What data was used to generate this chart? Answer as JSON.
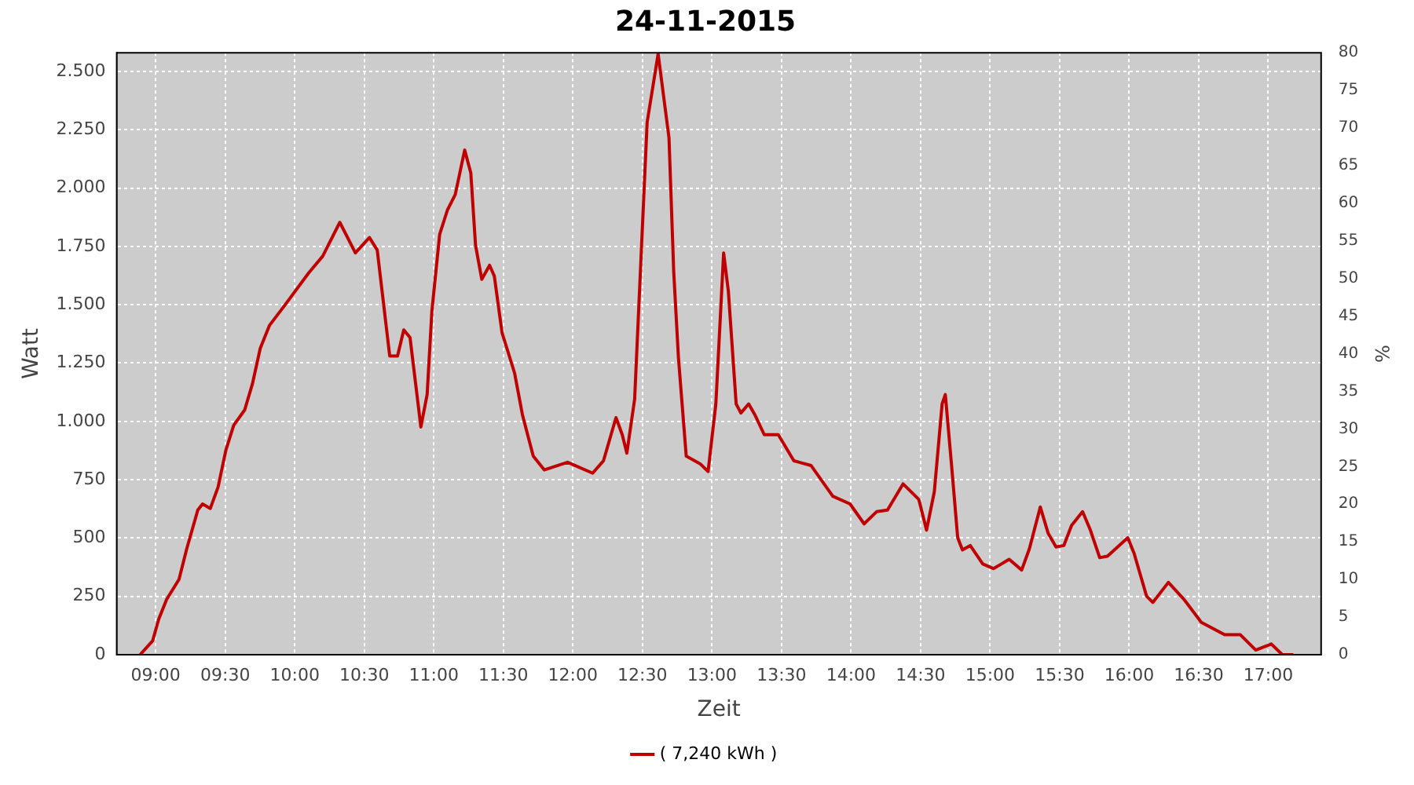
{
  "chart_data": {
    "type": "line",
    "title": "24-11-2015",
    "xlabel": "Zeit",
    "ylabel": "Watt",
    "y2label": "%",
    "xlim": [
      8.72,
      17.38
    ],
    "xticks": [
      {
        "value": 9,
        "label": "09:00"
      },
      {
        "value": 9.5,
        "label": "09:30"
      },
      {
        "value": 10,
        "label": "10:00"
      },
      {
        "value": 10.5,
        "label": "10:30"
      },
      {
        "value": 11,
        "label": "11:00"
      },
      {
        "value": 11.5,
        "label": "11:30"
      },
      {
        "value": 12,
        "label": "12:00"
      },
      {
        "value": 12.5,
        "label": "12:30"
      },
      {
        "value": 13,
        "label": "13:00"
      },
      {
        "value": 13.5,
        "label": "13:30"
      },
      {
        "value": 14,
        "label": "14:00"
      },
      {
        "value": 14.5,
        "label": "14:30"
      },
      {
        "value": 15,
        "label": "15:00"
      },
      {
        "value": 15.5,
        "label": "15:30"
      },
      {
        "value": 16,
        "label": "16:00"
      },
      {
        "value": 16.5,
        "label": "16:30"
      },
      {
        "value": 17,
        "label": "17:00"
      }
    ],
    "ylim": [
      0,
      2580
    ],
    "yticks": [
      0,
      250,
      500,
      750,
      {
        "value": 1000,
        "label": "1.000"
      },
      {
        "value": 1250,
        "label": "1.250"
      },
      {
        "value": 1500,
        "label": "1.500"
      },
      {
        "value": 1750,
        "label": "1.750"
      },
      {
        "value": 2000,
        "label": "2.000"
      },
      {
        "value": 2250,
        "label": "2.250"
      },
      {
        "value": 2500,
        "label": "2.500"
      }
    ],
    "y2lim": [
      0,
      80
    ],
    "y2ticks": [
      0,
      5,
      10,
      15,
      20,
      25,
      30,
      35,
      40,
      45,
      50,
      55,
      60,
      65,
      70,
      75,
      80
    ],
    "grid": true,
    "legend": "bottom",
    "marker": "none",
    "line_style": "solid",
    "series": [
      {
        "name": "( 7,240 kWh )",
        "color": "#c00000",
        "x": [
          8.888,
          8.978,
          9.022,
          9.079,
          9.168,
          9.224,
          9.303,
          9.337,
          9.393,
          9.449,
          9.505,
          9.561,
          9.64,
          9.696,
          9.752,
          9.819,
          9.92,
          10.1,
          10.201,
          10.324,
          10.436,
          10.537,
          10.593,
          10.683,
          10.739,
          10.784,
          10.829,
          10.907,
          10.952,
          10.986,
          11.042,
          11.098,
          11.154,
          11.222,
          11.266,
          11.3,
          11.345,
          11.401,
          11.435,
          11.491,
          11.581,
          11.637,
          11.715,
          11.794,
          11.962,
          12.142,
          12.22,
          12.31,
          12.355,
          12.388,
          12.444,
          12.489,
          12.534,
          12.613,
          12.691,
          12.725,
          12.759,
          12.815,
          12.916,
          12.972,
          13.028,
          13.084,
          13.118,
          13.174,
          13.208,
          13.264,
          13.308,
          13.376,
          13.477,
          13.589,
          13.712,
          13.869,
          13.993,
          14.094,
          14.184,
          14.262,
          14.374,
          14.487,
          14.543,
          14.599,
          14.655,
          14.678,
          14.723,
          14.767,
          14.801,
          14.857,
          14.947,
          15.025,
          15.137,
          15.227,
          15.283,
          15.361,
          15.417,
          15.474,
          15.53,
          15.586,
          15.665,
          15.721,
          15.788,
          15.844,
          15.99,
          16.035,
          16.125,
          16.17,
          16.282,
          16.394,
          16.518,
          16.686,
          16.798,
          16.91,
          17.022,
          17.101,
          17.18
        ],
        "values": [
          0,
          59,
          152,
          237,
          323,
          455,
          620,
          646,
          627,
          719,
          877,
          983,
          1049,
          1161,
          1313,
          1412,
          1491,
          1636,
          1708,
          1853,
          1722,
          1788,
          1735,
          1280,
          1280,
          1392,
          1359,
          976,
          1115,
          1471,
          1801,
          1906,
          1972,
          2163,
          2065,
          1755,
          1609,
          1669,
          1623,
          1379,
          1207,
          1029,
          851,
          792,
          825,
          778,
          831,
          1016,
          943,
          864,
          1095,
          1689,
          2282,
          2575,
          2216,
          1642,
          1273,
          851,
          818,
          785,
          1075,
          1722,
          1557,
          1075,
          1036,
          1075,
          1029,
          943,
          943,
          831,
          811,
          679,
          646,
          561,
          613,
          620,
          732,
          666,
          534,
          699,
          1075,
          1115,
          811,
          501,
          449,
          468,
          389,
          369,
          409,
          363,
          455,
          633,
          521,
          462,
          468,
          554,
          613,
          534,
          416,
          422,
          501,
          435,
          251,
          224,
          310,
          237,
          139,
          86,
          86,
          20,
          46,
          0,
          0
        ]
      }
    ]
  }
}
